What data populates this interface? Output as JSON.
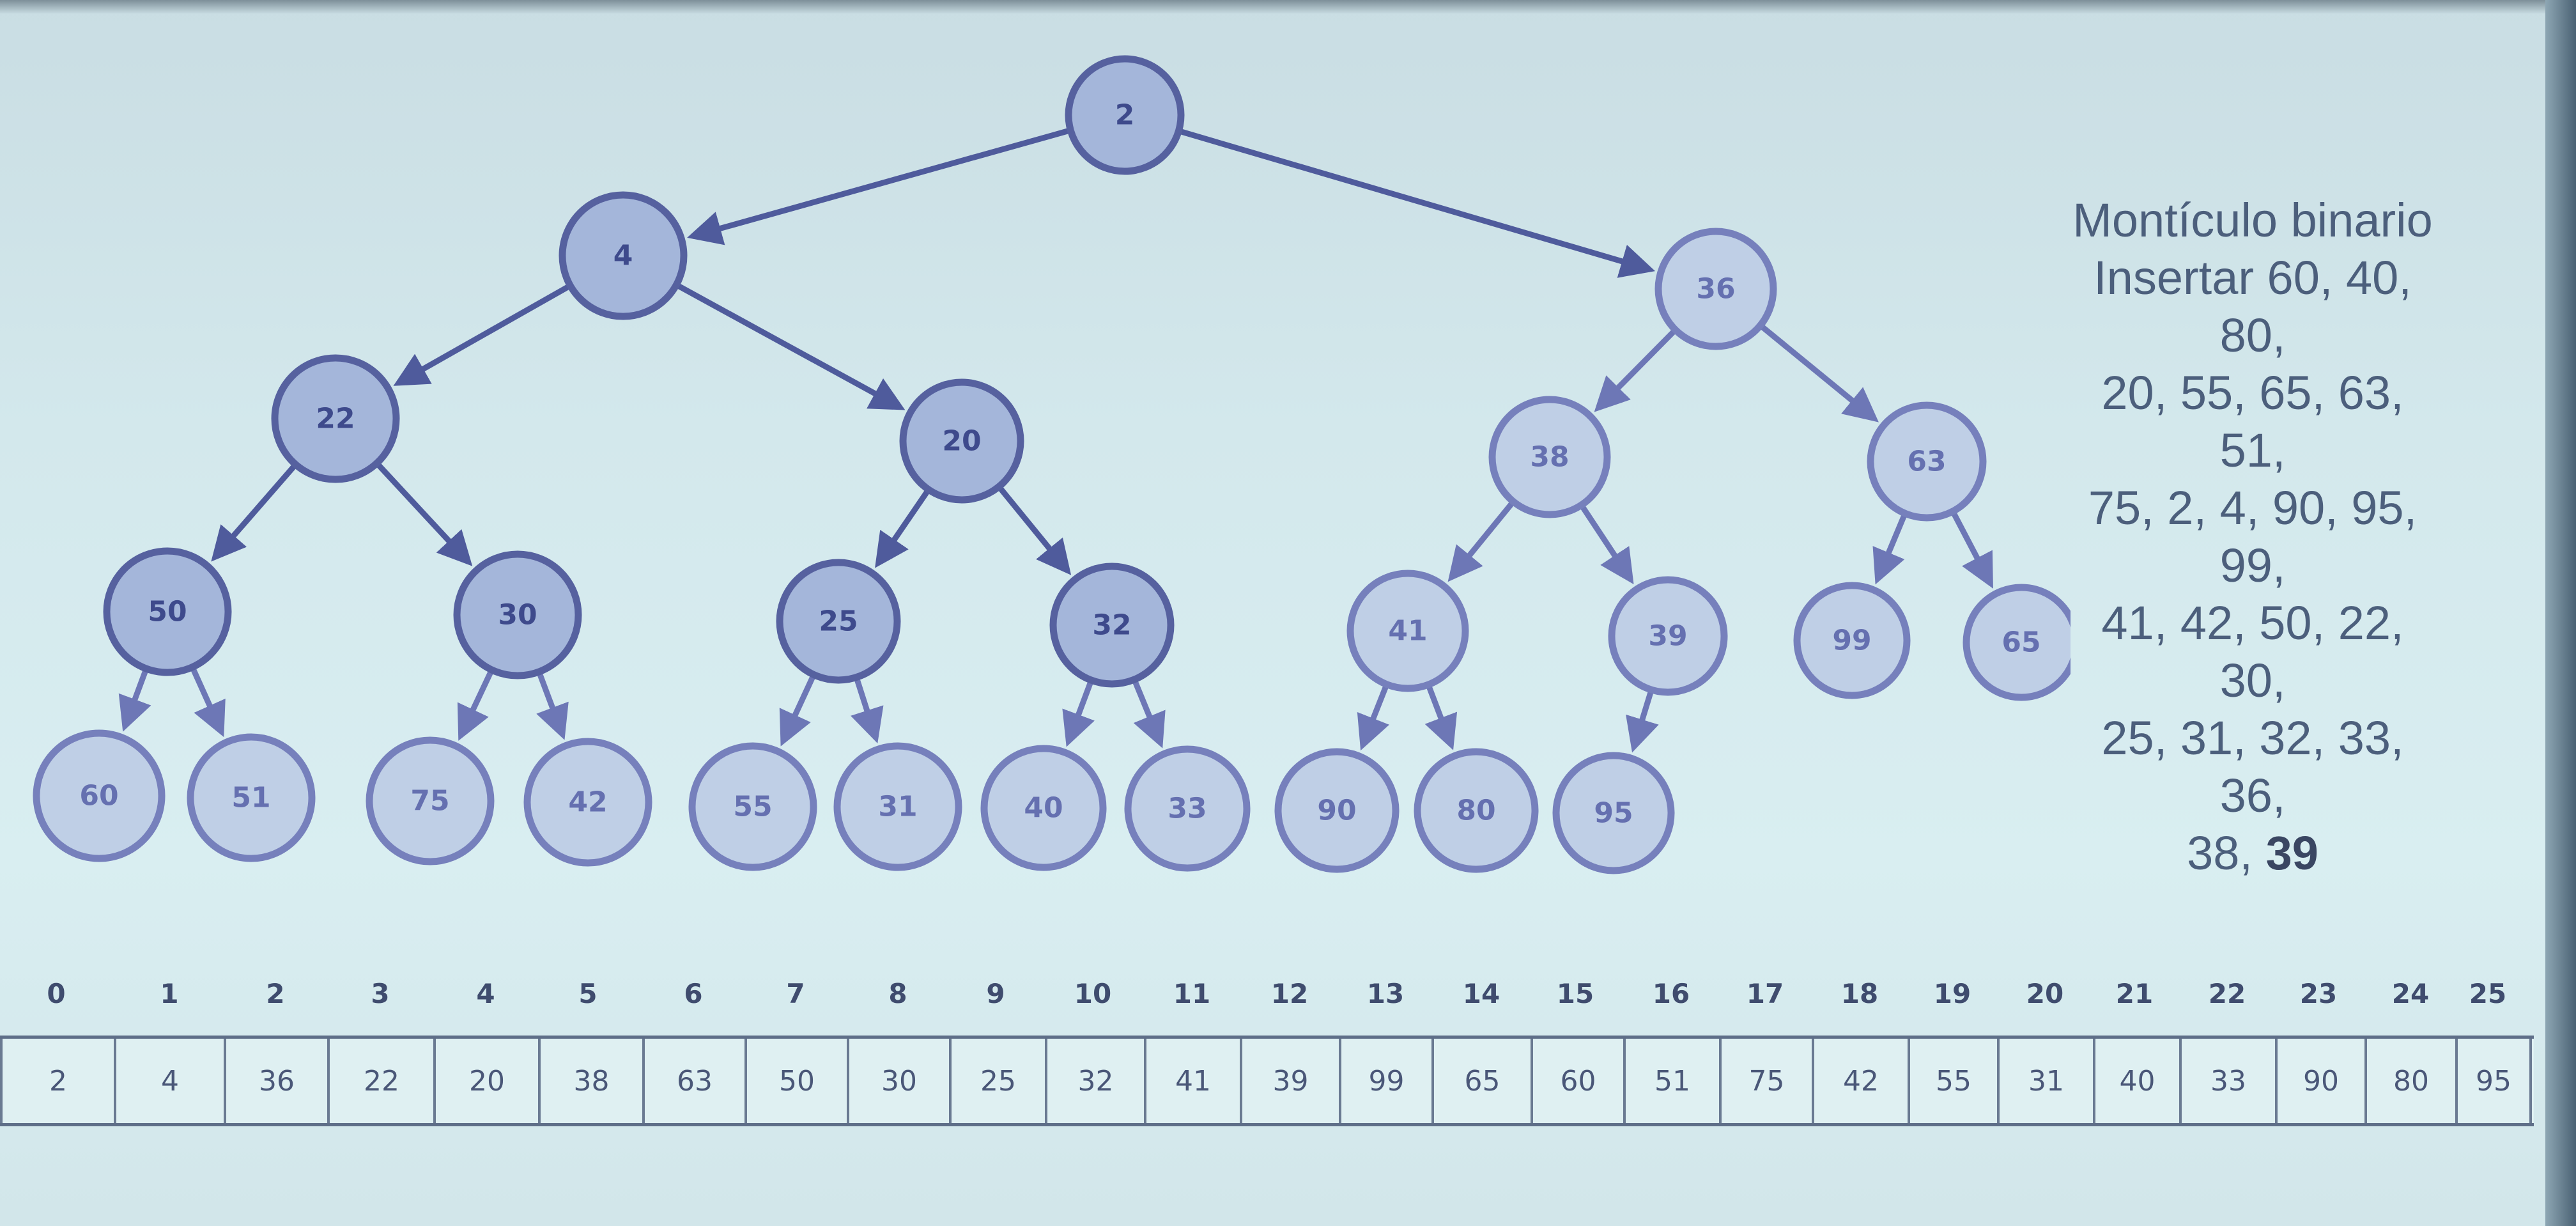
{
  "heap": {
    "root": 2,
    "nodes": [
      {
        "id": "n0",
        "value": 2
      },
      {
        "id": "n1",
        "value": 4
      },
      {
        "id": "n2",
        "value": 36
      },
      {
        "id": "n3",
        "value": 22
      },
      {
        "id": "n4",
        "value": 20
      },
      {
        "id": "n5",
        "value": 38
      },
      {
        "id": "n6",
        "value": 63
      },
      {
        "id": "n7",
        "value": 50
      },
      {
        "id": "n8",
        "value": 30
      },
      {
        "id": "n9",
        "value": 25
      },
      {
        "id": "n10",
        "value": 32
      },
      {
        "id": "n11",
        "value": 41
      },
      {
        "id": "n12",
        "value": 39
      },
      {
        "id": "n13",
        "value": 99
      },
      {
        "id": "n14",
        "value": 65
      },
      {
        "id": "n15",
        "value": 60
      },
      {
        "id": "n16",
        "value": 51
      },
      {
        "id": "n17",
        "value": 75
      },
      {
        "id": "n18",
        "value": 42
      },
      {
        "id": "n19",
        "value": 55
      },
      {
        "id": "n20",
        "value": 31
      },
      {
        "id": "n21",
        "value": 40
      },
      {
        "id": "n22",
        "value": 33
      },
      {
        "id": "n23",
        "value": 90
      },
      {
        "id": "n24",
        "value": 80
      },
      {
        "id": "n25",
        "value": 95
      }
    ],
    "edges": [
      [
        "n0",
        "n1"
      ],
      [
        "n0",
        "n2"
      ],
      [
        "n1",
        "n3"
      ],
      [
        "n1",
        "n4"
      ],
      [
        "n2",
        "n5"
      ],
      [
        "n2",
        "n6"
      ],
      [
        "n3",
        "n7"
      ],
      [
        "n3",
        "n8"
      ],
      [
        "n4",
        "n9"
      ],
      [
        "n4",
        "n10"
      ],
      [
        "n5",
        "n11"
      ],
      [
        "n5",
        "n12"
      ],
      [
        "n6",
        "n13"
      ],
      [
        "n6",
        "n14"
      ],
      [
        "n7",
        "n15"
      ],
      [
        "n7",
        "n16"
      ],
      [
        "n8",
        "n17"
      ],
      [
        "n8",
        "n18"
      ],
      [
        "n9",
        "n19"
      ],
      [
        "n9",
        "n20"
      ],
      [
        "n10",
        "n21"
      ],
      [
        "n10",
        "n22"
      ],
      [
        "n11",
        "n23"
      ],
      [
        "n11",
        "n24"
      ],
      [
        "n12",
        "n25"
      ]
    ]
  },
  "caption": {
    "lines": [
      "Montículo binario",
      "Insertar 60, 40, 80,",
      "20, 55, 65, 63, 51,",
      "75, 2, 4, 90, 95, 99,",
      "41, 42, 50, 22, 30,",
      "25, 31, 32, 33, 36,"
    ],
    "last_prefix": "38, ",
    "last_emphasis": "39"
  },
  "array": {
    "indices": [
      "0",
      "1",
      "2",
      "3",
      "4",
      "5",
      "6",
      "7",
      "8",
      "9",
      "10",
      "11",
      "12",
      "13",
      "14",
      "15",
      "16",
      "17",
      "18",
      "19",
      "20",
      "21",
      "22",
      "23",
      "24",
      "25"
    ],
    "values": [
      "2",
      "4",
      "36",
      "22",
      "20",
      "38",
      "63",
      "50",
      "30",
      "25",
      "32",
      "41",
      "39",
      "99",
      "65",
      "60",
      "51",
      "75",
      "42",
      "55",
      "31",
      "40",
      "33",
      "90",
      "80",
      "95"
    ]
  },
  "colors": {
    "node_fill": "#a4b6da",
    "node_stroke": "#56619f",
    "node_text": "#3e4a8c",
    "edge": "#4f5b9c"
  }
}
